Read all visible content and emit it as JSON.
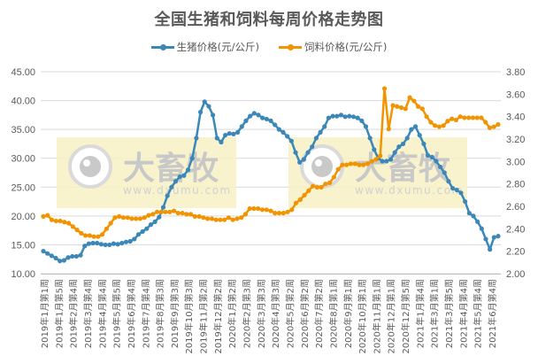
{
  "chart_data": {
    "type": "line",
    "title": "全国生猪和饲料每周价格走势图",
    "legend_position": "top",
    "grid": true,
    "xlabel": "",
    "ylabel": "",
    "y_left": {
      "ticks": [
        "45.00",
        "40.00",
        "35.00",
        "30.00",
        "25.00",
        "20.00",
        "15.00",
        "10.00"
      ],
      "ylim": [
        10,
        45
      ]
    },
    "y_right": {
      "ticks": [
        "3.80",
        "3.60",
        "3.40",
        "3.20",
        "3.00",
        "2.80",
        "2.60",
        "2.40",
        "2.20",
        "2.00"
      ],
      "ylim": [
        2.0,
        3.8
      ]
    },
    "categories": [
      "2019年1月第1周",
      "2019年1月第5周",
      "2019年2月第4周",
      "2019年3月第4周",
      "2019年4月第4周",
      "2019年5月第5周",
      "2019年6月第4周",
      "2019年7月第4周",
      "2019年8月第3周",
      "2019年9月第3周",
      "2019年10月第3周",
      "2019年11月第2周",
      "2019年12月第2周",
      "2020年1月第2周",
      "2020年2月第3周",
      "2020年3月第3周",
      "2020年4月第3周",
      "2020年5月第2周",
      "2020年6月第2周",
      "2020年7月第2周",
      "2020年8月第1周",
      "2020年9月第1周",
      "2020年10月第1周",
      "2020年11月第1周",
      "2020年12月第1周",
      "2020年12月第5周",
      "2021年1月第4周",
      "2021年3月第1周",
      "2021年3月第5周",
      "2021年4月第4周",
      "2021年5月第4周",
      "2021年6月第4周"
    ],
    "series": [
      {
        "name": "生猪价格(元/公斤)",
        "axis": "left",
        "color": "#3A87B8",
        "values": [
          13.9,
          13.5,
          13.1,
          12.7,
          12.2,
          12.3,
          12.8,
          13.0,
          13.0,
          13.2,
          14.8,
          15.2,
          15.3,
          15.3,
          15.1,
          15.0,
          15.0,
          15.2,
          15.1,
          15.3,
          15.5,
          15.6,
          16.0,
          16.8,
          17.3,
          17.8,
          18.5,
          19.0,
          19.8,
          21.5,
          23.5,
          25.0,
          26.0,
          26.8,
          27.0,
          28.0,
          30.0,
          33.5,
          38.0,
          39.8,
          39.0,
          37.5,
          33.5,
          32.8,
          34.0,
          34.3,
          34.2,
          34.5,
          35.5,
          36.5,
          37.3,
          37.8,
          37.5,
          37.0,
          36.8,
          36.5,
          35.8,
          35.0,
          34.5,
          33.8,
          33.0,
          31.0,
          29.3,
          29.8,
          31.0,
          32.0,
          33.5,
          34.5,
          35.5,
          37.0,
          37.3,
          37.3,
          37.5,
          37.2,
          37.3,
          37.2,
          37.0,
          36.5,
          35.5,
          33.5,
          31.5,
          30.0,
          29.5,
          29.5,
          29.8,
          31.0,
          32.0,
          32.5,
          33.5,
          35.0,
          35.5,
          34.0,
          32.5,
          30.5,
          30.2,
          29.5,
          28.5,
          27.5,
          26.0,
          24.8,
          24.5,
          24.0,
          22.5,
          20.5,
          20.0,
          19.0,
          17.8,
          16.0,
          14.2,
          16.3,
          16.5
        ]
      },
      {
        "name": "饲料价格(元/公斤)",
        "axis": "right",
        "color": "#F29400",
        "values": [
          2.51,
          2.52,
          2.48,
          2.47,
          2.47,
          2.46,
          2.45,
          2.42,
          2.39,
          2.36,
          2.34,
          2.34,
          2.33,
          2.33,
          2.35,
          2.4,
          2.45,
          2.5,
          2.51,
          2.5,
          2.5,
          2.49,
          2.49,
          2.49,
          2.5,
          2.52,
          2.53,
          2.55,
          2.55,
          2.55,
          2.55,
          2.56,
          2.54,
          2.54,
          2.53,
          2.53,
          2.51,
          2.51,
          2.5,
          2.49,
          2.49,
          2.48,
          2.48,
          2.48,
          2.5,
          2.48,
          2.49,
          2.5,
          2.53,
          2.58,
          2.58,
          2.58,
          2.57,
          2.57,
          2.56,
          2.54,
          2.54,
          2.54,
          2.55,
          2.57,
          2.63,
          2.66,
          2.7,
          2.74,
          2.78,
          2.77,
          2.77,
          2.8,
          2.81,
          2.86,
          2.93,
          2.97,
          2.97,
          2.98,
          2.98,
          2.97,
          2.97,
          2.98,
          3.0,
          3.02,
          3.05,
          3.65,
          3.29,
          3.5,
          3.49,
          3.48,
          3.47,
          3.57,
          3.54,
          3.49,
          3.47,
          3.4,
          3.35,
          3.32,
          3.31,
          3.32,
          3.36,
          3.38,
          3.37,
          3.4,
          3.39,
          3.39,
          3.39,
          3.39,
          3.39,
          3.35,
          3.3,
          3.31,
          3.33
        ]
      }
    ]
  },
  "legend": {
    "hog_label": "生猪价格(元/公斤)",
    "feed_label": "饲料价格(元/公斤)",
    "hog_color": "#3A87B8",
    "feed_color": "#F29400"
  },
  "watermark": {
    "brand": "大畜牧",
    "url": "www.dxumu.com"
  }
}
